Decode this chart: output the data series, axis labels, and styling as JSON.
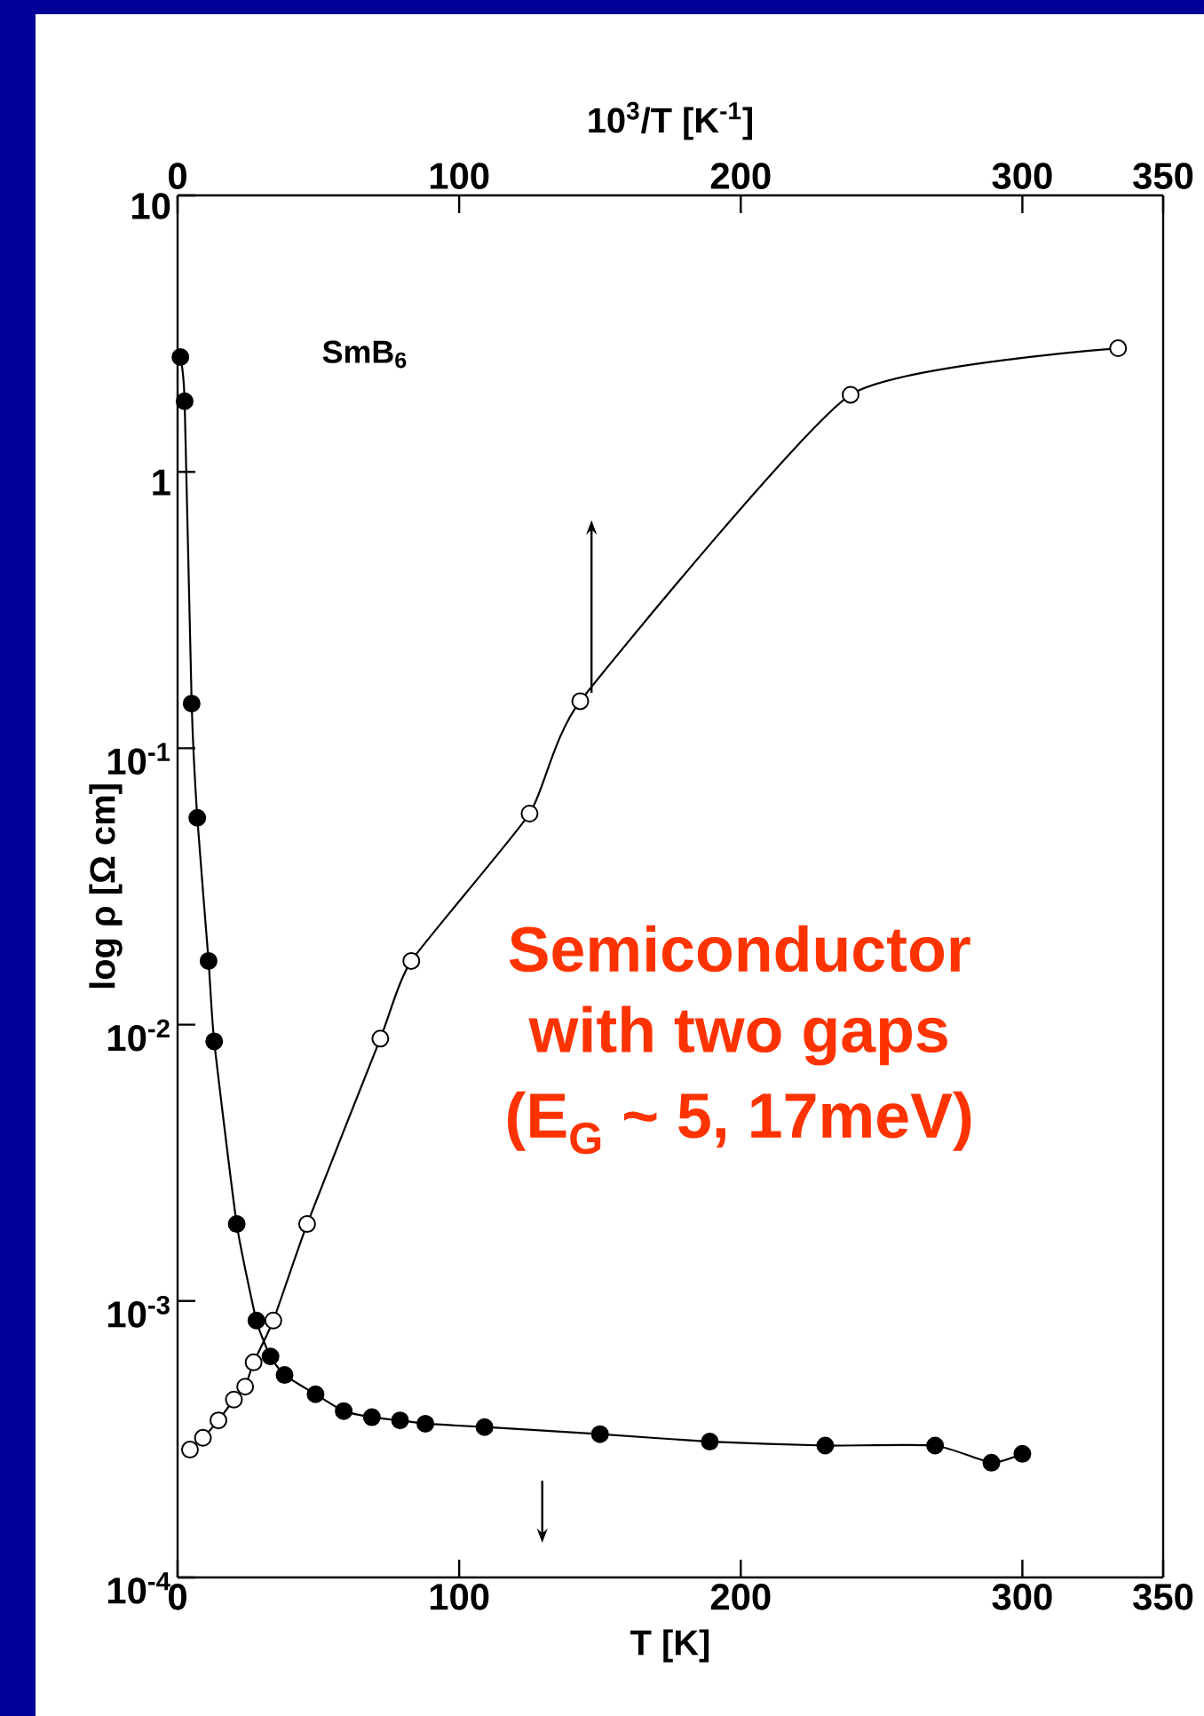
{
  "chart_data": {
    "type": "line",
    "xlabel": "T [K]",
    "x2label": "10$^{3}$/T [K$^{-1}$]",
    "ylabel": "log ρ [Ω cm]",
    "xlim": [
      0,
      350
    ],
    "xticks": [
      0,
      100,
      200,
      300,
      350
    ],
    "x2lim": [
      0,
      350
    ],
    "x2ticks": [
      0,
      100,
      200,
      300,
      350
    ],
    "ylim": [
      0.0001,
      10
    ],
    "log": "y",
    "yticks": [
      {
        "value": 0.0001,
        "label": "10$^{-4}$"
      },
      {
        "value": 0.001,
        "label": "10$^{-3}$"
      },
      {
        "value": 0.01,
        "label": "10$^{-2}$"
      },
      {
        "value": 0.1,
        "label": "10$^{-1}$"
      },
      1,
      10
    ],
    "marker": "circle",
    "line_style": "solid",
    "grid": false,
    "series": [
      {
        "color": "#000000",
        "x": [
          1,
          2.5,
          5,
          7,
          11,
          13,
          21,
          28,
          33,
          38,
          49,
          59,
          69,
          79,
          88,
          109,
          150,
          189,
          230,
          269,
          289,
          300
        ],
        "values": [
          2.6,
          1.8,
          0.145,
          0.056,
          0.017,
          0.0087,
          0.0019,
          0.00085,
          0.00063,
          0.00054,
          0.00046,
          0.0004,
          0.00038,
          0.00037,
          0.00036,
          0.00035,
          0.00033,
          0.00031,
          0.0003,
          0.0003,
          0.00026,
          0.00028
        ]
      },
      {
        "color": "#000000",
        "axis": "x2",
        "x": [
          4.4,
          9,
          14.5,
          20,
          24,
          27,
          34,
          46,
          72,
          83,
          125,
          143,
          239,
          334
        ],
        "values": [
          0.00029,
          0.00032,
          0.00037,
          0.00044,
          0.00049,
          0.0006,
          0.00085,
          0.0019,
          0.0089,
          0.017,
          0.058,
          0.148,
          1.9,
          2.8
        ]
      }
    ],
    "annotations": [
      "SmB$_{6}$",
      "Semiconductor",
      "with two gaps",
      "(E$_{G}$ ~ 5, 17meV)"
    ]
  }
}
